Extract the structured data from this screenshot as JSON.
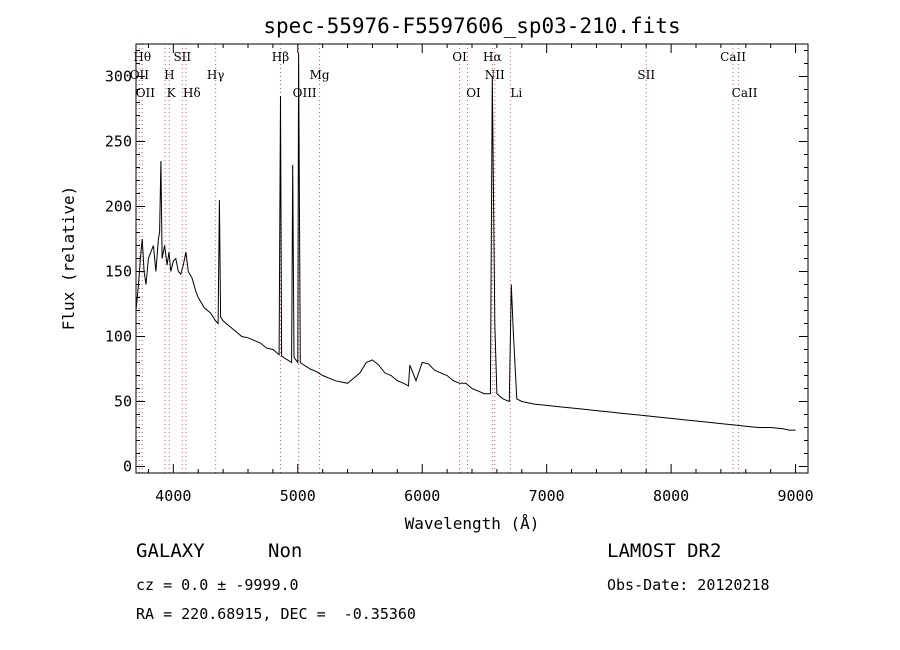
{
  "chart_data": {
    "type": "line",
    "title": "spec-55976-F5597606_sp03-210.fits",
    "xlabel": "Wavelength (Å)",
    "ylabel": "Flux (relative)",
    "xlim": [
      3700,
      9100
    ],
    "ylim": [
      -5,
      325
    ],
    "xticks": [
      4000,
      5000,
      6000,
      7000,
      8000,
      9000
    ],
    "yticks": [
      0,
      50,
      100,
      150,
      200,
      250,
      300
    ],
    "grid": false,
    "series": [
      {
        "x": [
          3700,
          3720,
          3735,
          3750,
          3765,
          3780,
          3800,
          3820,
          3840,
          3860,
          3880,
          3890,
          3900,
          3910,
          3930,
          3950,
          3965,
          3980,
          4000,
          4020,
          4040,
          4060,
          4080,
          4101,
          4120,
          4150,
          4180,
          4200,
          4250,
          4300,
          4340,
          4360,
          4370,
          4380,
          4400,
          4450,
          4500,
          4550,
          4600,
          4650,
          4700,
          4750,
          4800,
          4850,
          4861,
          4870,
          4900,
          4950,
          4959,
          4970,
          5000,
          5007,
          5020,
          5050,
          5100,
          5150,
          5200,
          5250,
          5300,
          5350,
          5400,
          5450,
          5500,
          5550,
          5600,
          5650,
          5700,
          5750,
          5800,
          5850,
          5890,
          5900,
          5950,
          6000,
          6050,
          6100,
          6150,
          6200,
          6250,
          6300,
          6350,
          6400,
          6450,
          6500,
          6548,
          6563,
          6583,
          6600,
          6650,
          6700,
          6716,
          6731,
          6760,
          6800,
          6900,
          7000,
          7100,
          7200,
          7300,
          7400,
          7500,
          7600,
          7700,
          7800,
          7900,
          8000,
          8100,
          8200,
          8300,
          8400,
          8500,
          8600,
          8700,
          8800,
          8900,
          8950,
          9000
        ],
        "y": [
          120,
          140,
          160,
          175,
          150,
          140,
          160,
          165,
          170,
          150,
          175,
          180,
          235,
          160,
          170,
          155,
          165,
          150,
          158,
          160,
          150,
          148,
          155,
          165,
          150,
          145,
          135,
          130,
          122,
          118,
          112,
          110,
          205,
          115,
          112,
          108,
          104,
          100,
          99,
          97,
          95,
          91,
          90,
          86,
          285,
          85,
          83,
          80,
          232,
          84,
          80,
          318,
          80,
          78,
          75,
          73,
          70,
          68,
          66,
          65,
          64,
          68,
          72,
          80,
          82,
          78,
          72,
          70,
          66,
          64,
          62,
          78,
          66,
          80,
          79,
          74,
          72,
          70,
          66,
          64,
          64,
          60,
          58,
          56,
          56,
          300,
          110,
          56,
          52,
          50,
          140,
          105,
          52,
          50,
          48,
          47,
          46,
          45,
          44,
          43,
          42,
          41,
          40,
          39,
          38,
          37,
          36,
          35,
          34,
          33,
          32,
          31,
          30,
          30,
          29,
          28,
          28
        ]
      }
    ],
    "emission_lines": [
      {
        "label": "OII",
        "x": 3727,
        "row": 1
      },
      {
        "label": "Hθ",
        "x": 3750,
        "row": 0
      },
      {
        "label": "H",
        "x": 3968,
        "row": 1
      },
      {
        "label": "SII",
        "x": 4072,
        "row": 0
      },
      {
        "label": "Hγ",
        "x": 4340,
        "row": 1
      },
      {
        "label": "Hβ",
        "x": 4861,
        "row": 0
      },
      {
        "label": "Mg",
        "x": 5175,
        "row": 1
      },
      {
        "label": "OI",
        "x": 6300,
        "row": 0
      },
      {
        "label": "Hα",
        "x": 6563,
        "row": 0
      },
      {
        "label": "NII",
        "x": 6583,
        "row": 1
      },
      {
        "label": "SII",
        "x": 7800,
        "row": 1
      },
      {
        "label": "CaII",
        "x": 8498,
        "row": 0
      }
    ],
    "absorption_lines": [
      {
        "label": "OII",
        "x": 3727
      },
      {
        "label": "K",
        "x": 3934
      },
      {
        "label": "Hδ",
        "x": 4101
      },
      {
        "label": "OIII",
        "x": 5007
      },
      {
        "label": "OI",
        "x": 6364
      },
      {
        "label": "Li",
        "x": 6708
      },
      {
        "label": "CaII",
        "x": 8542
      }
    ],
    "marker_lines_x": [
      3727,
      3750,
      3934,
      3968,
      4072,
      4101,
      4340,
      4861,
      5007,
      5175,
      6300,
      6364,
      6563,
      6583,
      6708,
      7800,
      8498,
      8542
    ]
  },
  "info": {
    "class": "GALAXY",
    "subclass": "Non",
    "survey": "LAMOST DR2",
    "redshift": "cz = 0.0 ± -9999.0",
    "obs_date": "Obs-Date: 20120218",
    "coords": "RA = 220.68915, DEC =  -0.35360"
  }
}
